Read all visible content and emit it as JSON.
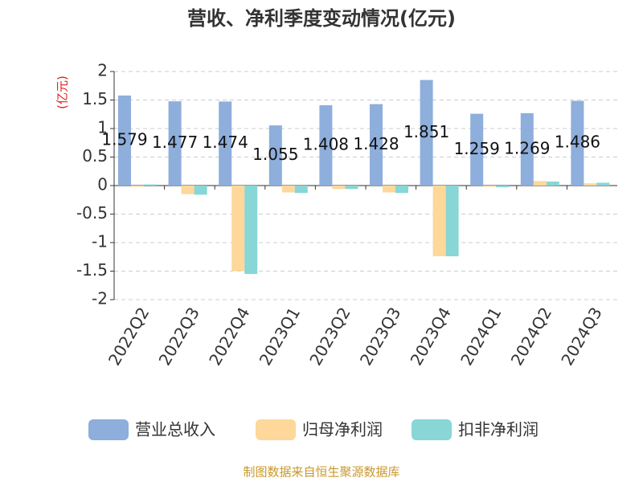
{
  "chart_data": {
    "type": "bar",
    "title": "营收、净利季度变动情况(亿元)",
    "y_label": "(亿元)",
    "y_label_color": "#e02020",
    "categories": [
      "2022Q2",
      "2022Q3",
      "2022Q4",
      "2023Q1",
      "2023Q2",
      "2023Q3",
      "2023Q4",
      "2024Q1",
      "2024Q2",
      "2024Q3"
    ],
    "series": [
      {
        "name": "营业总收入",
        "color": "#8eaedc",
        "labels": true,
        "values": [
          1.579,
          1.477,
          1.474,
          1.055,
          1.408,
          1.428,
          1.851,
          1.259,
          1.269,
          1.486
        ]
      },
      {
        "name": "归母净利润",
        "color": "#fdd89a",
        "labels": false,
        "values": [
          -0.02,
          -0.15,
          -1.5,
          -0.12,
          -0.06,
          -0.12,
          -1.24,
          -0.02,
          0.08,
          0.04
        ]
      },
      {
        "name": "扣非净利润",
        "color": "#88d6d6",
        "labels": false,
        "values": [
          0.02,
          -0.16,
          -1.55,
          -0.13,
          -0.06,
          -0.13,
          -1.24,
          -0.03,
          0.07,
          0.05
        ]
      }
    ],
    "ylim": [
      -2,
      2
    ],
    "yticks": [
      -2,
      -1.5,
      -1,
      -0.5,
      0,
      0.5,
      1,
      1.5,
      2
    ],
    "grid": true,
    "source": "制图数据来自恒生聚源数据库"
  }
}
